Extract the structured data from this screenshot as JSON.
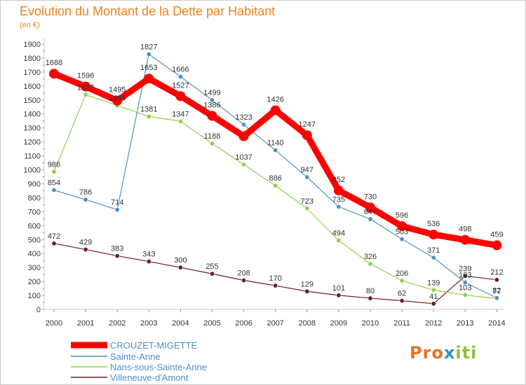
{
  "title": "Evolution du Montant de la Dette par Habitant",
  "unit": "(en €)",
  "logo": {
    "p1": "Pro",
    "p2": "x",
    "p3": "iti"
  },
  "chart_data": {
    "type": "line",
    "title": "Evolution du Montant de la Dette par Habitant",
    "subtitle": "(en €)",
    "x": [
      "2000",
      "2001",
      "2002",
      "2003",
      "2004",
      "2005",
      "2006",
      "2007",
      "2008",
      "2009",
      "2010",
      "2011",
      "2012",
      "2013",
      "2014"
    ],
    "yticks": [
      0,
      100,
      200,
      300,
      400,
      500,
      600,
      700,
      800,
      900,
      1000,
      1100,
      1200,
      1300,
      1400,
      1500,
      1600,
      1700,
      1800,
      1900
    ],
    "ylim": [
      0,
      1900
    ],
    "grid": false,
    "legend_position": "bottom-left",
    "series": [
      {
        "name": "CROUZET-MIGETTE",
        "color": "#ff0000",
        "width": 9,
        "marker": 7,
        "values": [
          1688,
          1596,
          1495,
          1653,
          1527,
          1386,
          1240,
          1426,
          1247,
          852,
          730,
          596,
          536,
          498,
          459
        ],
        "labels": [
          "1688",
          "1596",
          "1495",
          "1653",
          "1527",
          "1386",
          "",
          "1426",
          "1247",
          "852",
          "730",
          "596",
          "536",
          "498",
          "459"
        ]
      },
      {
        "name": "Sainte-Anne",
        "color": "#4f8fc5",
        "width": 1.2,
        "marker": 3.2,
        "values": [
          854,
          786,
          714,
          1827,
          1666,
          1499,
          1323,
          1140,
          947,
          735,
          647,
          503,
          371,
          193,
          82
        ],
        "labels": [
          "854",
          "786",
          "714",
          "1827",
          "1666",
          "1499",
          "1323",
          "1140",
          "947",
          "735",
          "647",
          "503",
          "371",
          "193",
          "82"
        ]
      },
      {
        "name": "Nans-sous-Sainte-Anne",
        "color": "#8fd147",
        "width": 1.2,
        "marker": 3.2,
        "values": [
          986,
          1537,
          1460,
          1381,
          1347,
          1188,
          1037,
          886,
          723,
          494,
          326,
          206,
          139,
          103,
          77
        ],
        "labels": [
          "986",
          "1537",
          "1460",
          "1381",
          "1347",
          "1188",
          "1037",
          "886",
          "723",
          "494",
          "326",
          "206",
          "139",
          "103",
          "77"
        ]
      },
      {
        "name": "Villeneuve-d'Amont",
        "color": "#6b1f24",
        "width": 1.2,
        "marker": 3.2,
        "values": [
          472,
          429,
          383,
          343,
          300,
          255,
          208,
          170,
          129,
          101,
          80,
          62,
          41,
          239,
          212
        ],
        "labels": [
          "472",
          "429",
          "383",
          "343",
          "300",
          "255",
          "208",
          "170",
          "129",
          "101",
          "80",
          "62",
          "41",
          "239",
          "212"
        ]
      }
    ]
  }
}
